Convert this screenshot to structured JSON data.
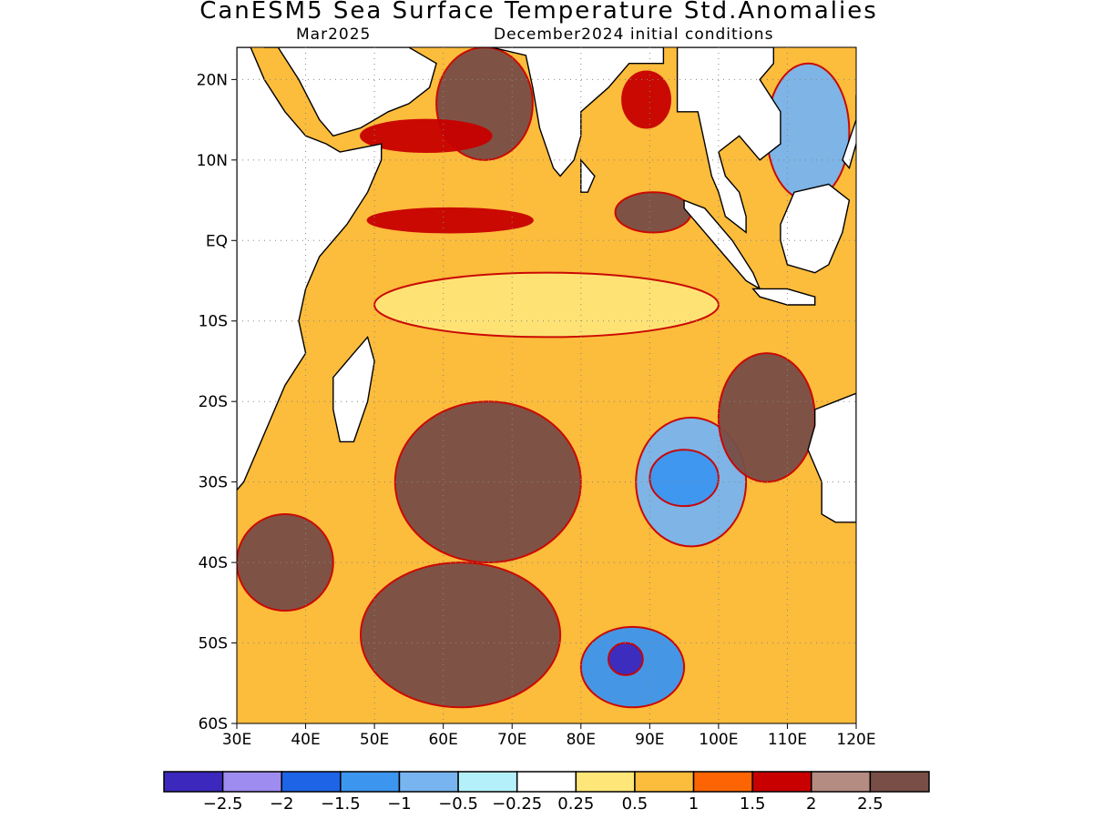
{
  "title": "CanESM5 Sea Surface Temperature Std.Anomalies",
  "valid_month": "Mar2025",
  "init_conditions": "December2024 initial conditions",
  "map": {
    "region": "Indian Ocean",
    "lon_range": [
      30,
      120
    ],
    "lat_range": [
      -60,
      24
    ],
    "x_ticks": [
      "30E",
      "40E",
      "50E",
      "60E",
      "70E",
      "80E",
      "90E",
      "100E",
      "110E",
      "120E"
    ],
    "y_ticks": [
      "20N",
      "10N",
      "EQ",
      "10S",
      "20S",
      "30S",
      "40S",
      "50S",
      "60S"
    ],
    "grid": "dotted",
    "ocean_default_color": "#fcbc3c",
    "land_color": "#ffffff"
  },
  "colorbar": {
    "colors": [
      "#3c28bc",
      "#9e8cf0",
      "#1e64e6",
      "#3c96f0",
      "#78b4f0",
      "#b4f0fa",
      "#ffffff",
      "#ffe678",
      "#fcbc3c",
      "#fc6404",
      "#c80000",
      "#b48c82",
      "#784e46"
    ],
    "labels": [
      "−2.5",
      "−2",
      "−1.5",
      "−1",
      "−0.5",
      "−0.25",
      "0.25",
      "0.5",
      "1",
      "1.5",
      "2",
      "2.5"
    ]
  },
  "anomaly_regions": [
    {
      "name": "india-subcontinent-band",
      "color": "#784e46",
      "lon": [
        59,
        73
      ],
      "lat": [
        10,
        24
      ]
    },
    {
      "name": "arabian-sea-north-warm",
      "color": "#c80000",
      "lon": [
        48,
        67
      ],
      "lat": [
        11,
        15
      ]
    },
    {
      "name": "eq-band-west",
      "color": "#c80000",
      "lon": [
        49,
        73
      ],
      "lat": [
        1,
        4
      ]
    },
    {
      "name": "eq-band-east",
      "color": "#784e46",
      "lon": [
        85,
        96
      ],
      "lat": [
        1,
        6
      ]
    },
    {
      "name": "bay-of-bengal-core",
      "color": "#c80000",
      "lon": [
        86,
        93
      ],
      "lat": [
        14,
        21
      ]
    },
    {
      "name": "central-io-light",
      "color": "#ffe678",
      "lon": [
        50,
        100
      ],
      "lat": [
        -12,
        -4
      ]
    },
    {
      "name": "southeast-io-cool",
      "color": "#78b4f0",
      "lon": [
        88,
        104
      ],
      "lat": [
        -38,
        -22
      ]
    },
    {
      "name": "southeast-io-cool-core",
      "color": "#3c96f0",
      "lon": [
        90,
        100
      ],
      "lat": [
        -33,
        -26
      ]
    },
    {
      "name": "south-central-brown",
      "color": "#784e46",
      "lon": [
        53,
        80
      ],
      "lat": [
        -40,
        -20
      ]
    },
    {
      "name": "southwest-brown",
      "color": "#784e46",
      "lon": [
        48,
        77
      ],
      "lat": [
        -58,
        -40
      ]
    },
    {
      "name": "southern-ocean-blue",
      "color": "#3c96f0",
      "lon": [
        80,
        95
      ],
      "lat": [
        -58,
        -48
      ]
    },
    {
      "name": "southern-ocean-blue-core",
      "color": "#3c28bc",
      "lon": [
        84,
        89
      ],
      "lat": [
        -54,
        -50
      ]
    },
    {
      "name": "west-australia-brown",
      "color": "#784e46",
      "lon": [
        100,
        114
      ],
      "lat": [
        -30,
        -14
      ]
    },
    {
      "name": "far-southwest-brown",
      "color": "#784e46",
      "lon": [
        30,
        44
      ],
      "lat": [
        -46,
        -34
      ]
    },
    {
      "name": "south-china-sea-cool",
      "color": "#78b4f0",
      "lon": [
        107,
        119
      ],
      "lat": [
        5,
        22
      ]
    }
  ]
}
